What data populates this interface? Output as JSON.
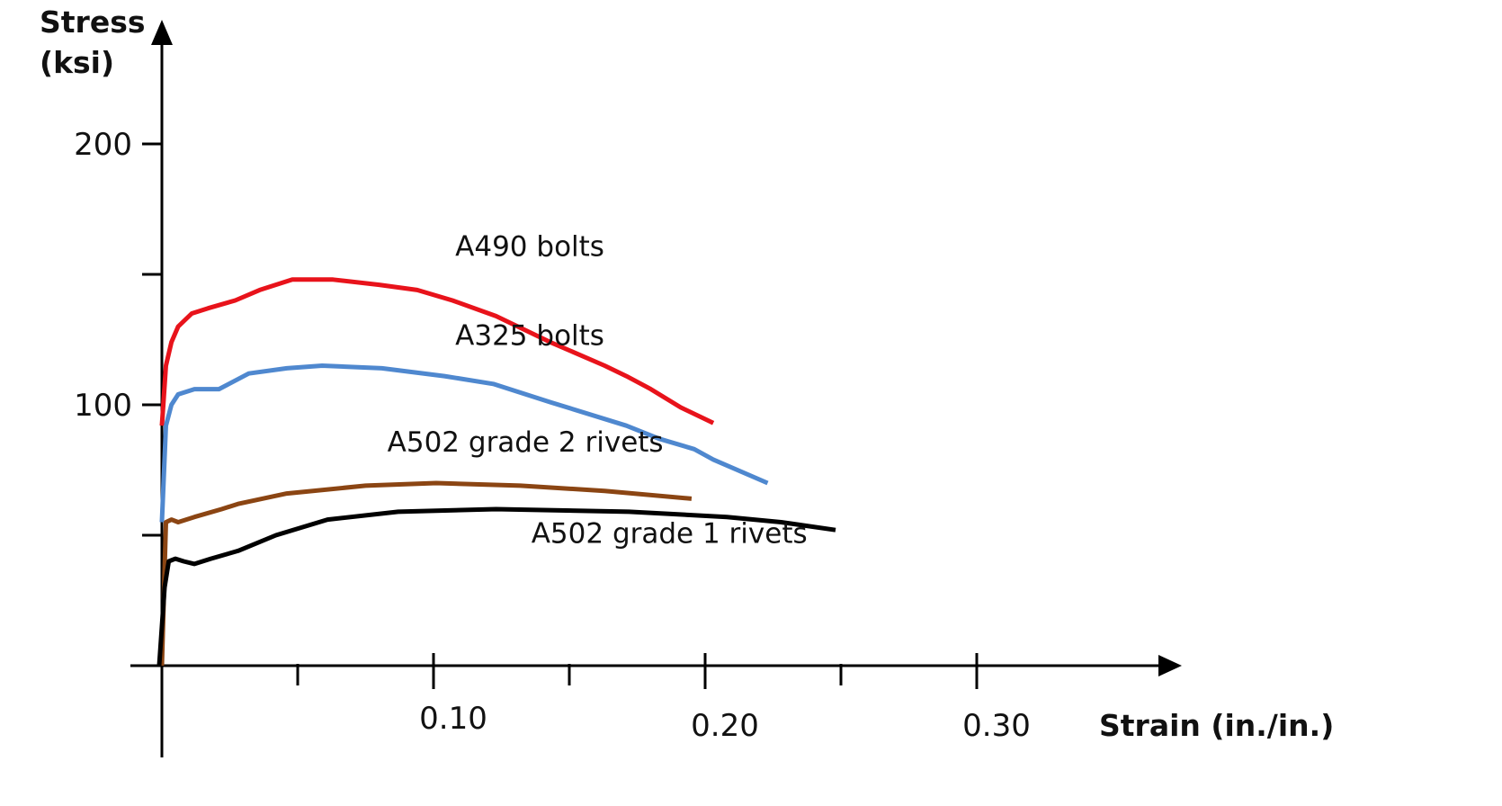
{
  "chart_data": {
    "type": "line",
    "ylabel_lines": [
      "Stress",
      "(ksi)"
    ],
    "xlabel": "Strain (in./in.)",
    "xlim": [
      0,
      0.35
    ],
    "ylim": [
      0,
      210
    ],
    "x_ticks": [
      {
        "value": 0.05,
        "label": ""
      },
      {
        "value": 0.1,
        "label": "0.10"
      },
      {
        "value": 0.15,
        "label": ""
      },
      {
        "value": 0.2,
        "label": "0.20"
      },
      {
        "value": 0.25,
        "label": ""
      },
      {
        "value": 0.3,
        "label": "0.30"
      }
    ],
    "y_ticks": [
      {
        "value": 50,
        "label": ""
      },
      {
        "value": 100,
        "label": "100"
      },
      {
        "value": 150,
        "label": ""
      },
      {
        "value": 200,
        "label": "200"
      }
    ],
    "grid": false,
    "series": [
      {
        "name": "A490 bolts",
        "color": "#e8131b",
        "x": [
          0.0,
          0.0015,
          0.0035,
          0.006,
          0.011,
          0.017,
          0.027,
          0.036,
          0.048,
          0.063,
          0.08,
          0.094,
          0.107,
          0.123,
          0.143,
          0.163,
          0.171,
          0.18,
          0.191,
          0.203
        ],
        "y": [
          92,
          115,
          124,
          130,
          135,
          137,
          140,
          144,
          148,
          148,
          146,
          144,
          140,
          134,
          124,
          115,
          111,
          106,
          99,
          93
        ]
      },
      {
        "name": "A325 bolts",
        "color": "#4f88cf",
        "x": [
          0.0,
          0.0015,
          0.0035,
          0.006,
          0.012,
          0.021,
          0.032,
          0.046,
          0.059,
          0.081,
          0.104,
          0.122,
          0.143,
          0.171,
          0.183,
          0.196,
          0.203,
          0.223
        ],
        "y": [
          55,
          92,
          100,
          104,
          106,
          106,
          112,
          114,
          115,
          114,
          111,
          108,
          101,
          92,
          87,
          83,
          79,
          70
        ]
      },
      {
        "name": "A502 grade 2 rivets",
        "color": "#8b4513",
        "x": [
          0.0,
          0.0015,
          0.0035,
          0.006,
          0.012,
          0.022,
          0.028,
          0.046,
          0.075,
          0.101,
          0.132,
          0.163,
          0.195
        ],
        "y": [
          0,
          55,
          56,
          55,
          57,
          60,
          62,
          66,
          69,
          70,
          69,
          67,
          64
        ]
      },
      {
        "name": "A502 grade 1 rivets",
        "color": "#000000",
        "x": [
          -0.001,
          0.001,
          0.0025,
          0.005,
          0.008,
          0.012,
          0.018,
          0.028,
          0.042,
          0.061,
          0.087,
          0.123,
          0.172,
          0.208,
          0.228,
          0.248
        ],
        "y": [
          0,
          30,
          40,
          41,
          40,
          39,
          41,
          44,
          50,
          56,
          59,
          60,
          59,
          57,
          55,
          52
        ]
      }
    ],
    "annotations": [
      {
        "text": "A490 bolts",
        "x": 0.108,
        "y": 157
      },
      {
        "text": "A325 bolts",
        "x": 0.108,
        "y": 123
      },
      {
        "text": "A502 grade 2 rivets",
        "x": 0.083,
        "y": 82
      },
      {
        "text": "A502 grade 1 rivets",
        "x": 0.136,
        "y": 47
      }
    ]
  }
}
